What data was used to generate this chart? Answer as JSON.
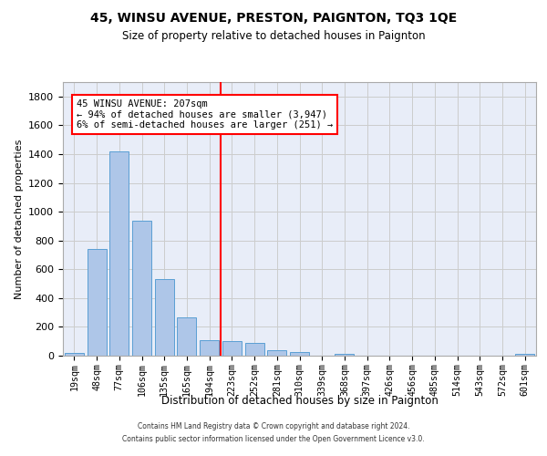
{
  "title": "45, WINSU AVENUE, PRESTON, PAIGNTON, TQ3 1QE",
  "subtitle": "Size of property relative to detached houses in Paignton",
  "xlabel": "Distribution of detached houses by size in Paignton",
  "ylabel": "Number of detached properties",
  "bar_labels": [
    "19sqm",
    "48sqm",
    "77sqm",
    "106sqm",
    "135sqm",
    "165sqm",
    "194sqm",
    "223sqm",
    "252sqm",
    "281sqm",
    "310sqm",
    "339sqm",
    "368sqm",
    "397sqm",
    "426sqm",
    "456sqm",
    "485sqm",
    "514sqm",
    "543sqm",
    "572sqm",
    "601sqm"
  ],
  "bar_values": [
    22,
    740,
    1420,
    935,
    530,
    265,
    105,
    100,
    90,
    40,
    27,
    0,
    15,
    0,
    0,
    0,
    0,
    0,
    0,
    0,
    15
  ],
  "bar_color": "#aec6e8",
  "bar_edgecolor": "#5a9fd4",
  "vline_x": 6.5,
  "vline_color": "red",
  "annotation_line1": "45 WINSU AVENUE: 207sqm",
  "annotation_line2": "← 94% of detached houses are smaller (3,947)",
  "annotation_line3": "6% of semi-detached houses are larger (251) →",
  "ylim": [
    0,
    1900
  ],
  "yticks": [
    0,
    200,
    400,
    600,
    800,
    1000,
    1200,
    1400,
    1600,
    1800
  ],
  "grid_color": "#cccccc",
  "background_color": "#e8edf8",
  "footer_line1": "Contains HM Land Registry data © Crown copyright and database right 2024.",
  "footer_line2": "Contains public sector information licensed under the Open Government Licence v3.0."
}
